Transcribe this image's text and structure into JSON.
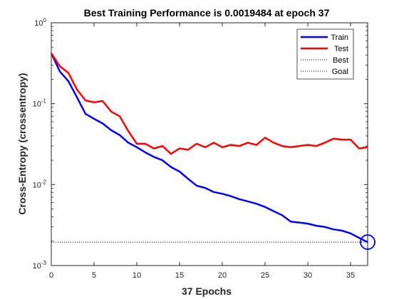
{
  "chart_data": {
    "type": "line",
    "title": "Best Training Performance is 0.0019484 at epoch 37",
    "xlabel": "37 Epochs",
    "ylabel": "Cross-Entropy  (crossentropy)",
    "xlim": [
      0,
      37
    ],
    "ylim": [
      0.001,
      1
    ],
    "yscale": "log",
    "xticks": [
      "0",
      "5",
      "10",
      "15",
      "20",
      "25",
      "30",
      "35"
    ],
    "yticks": [
      {
        "base": "10",
        "exp": "-3"
      },
      {
        "base": "10",
        "exp": "-2"
      },
      {
        "base": "10",
        "exp": "-1"
      },
      {
        "base": "10",
        "exp": "0"
      }
    ],
    "legend_position": "top-right",
    "x": [
      0,
      1,
      2,
      3,
      4,
      5,
      6,
      7,
      8,
      9,
      10,
      11,
      12,
      13,
      14,
      15,
      16,
      17,
      18,
      19,
      20,
      21,
      22,
      23,
      24,
      25,
      26,
      27,
      28,
      29,
      30,
      31,
      32,
      33,
      34,
      35,
      36,
      37
    ],
    "series": [
      {
        "name": "Train",
        "color": "#0000ff",
        "style": "solid",
        "values": [
          0.42,
          0.25,
          0.19,
          0.12,
          0.075,
          0.065,
          0.057,
          0.047,
          0.041,
          0.033,
          0.029,
          0.025,
          0.022,
          0.02,
          0.0165,
          0.0145,
          0.0118,
          0.0097,
          0.0091,
          0.0081,
          0.0077,
          0.0072,
          0.0066,
          0.0062,
          0.0058,
          0.0053,
          0.0047,
          0.0042,
          0.0035,
          0.0034,
          0.0033,
          0.0031,
          0.003,
          0.0028,
          0.0027,
          0.0025,
          0.0022,
          0.0019484
        ]
      },
      {
        "name": "Test",
        "color": "#ff0000",
        "style": "solid",
        "values": [
          0.42,
          0.29,
          0.24,
          0.15,
          0.11,
          0.104,
          0.108,
          0.08,
          0.07,
          0.046,
          0.032,
          0.032,
          0.028,
          0.03,
          0.024,
          0.028,
          0.027,
          0.032,
          0.029,
          0.033,
          0.029,
          0.031,
          0.03,
          0.033,
          0.031,
          0.038,
          0.033,
          0.03,
          0.029,
          0.03,
          0.031,
          0.03,
          0.033,
          0.037,
          0.036,
          0.036,
          0.028,
          0.029
        ]
      },
      {
        "name": "Best",
        "color": "#000000",
        "style": "dotted",
        "orientation": "vertical",
        "value": 37
      },
      {
        "name": "Goal",
        "color": "#000000",
        "style": "dotted",
        "orientation": "horizontal",
        "value": 0.0019484
      }
    ],
    "best_marker": {
      "x": 37,
      "y": 0.0019484,
      "color": "#0000ff"
    }
  }
}
